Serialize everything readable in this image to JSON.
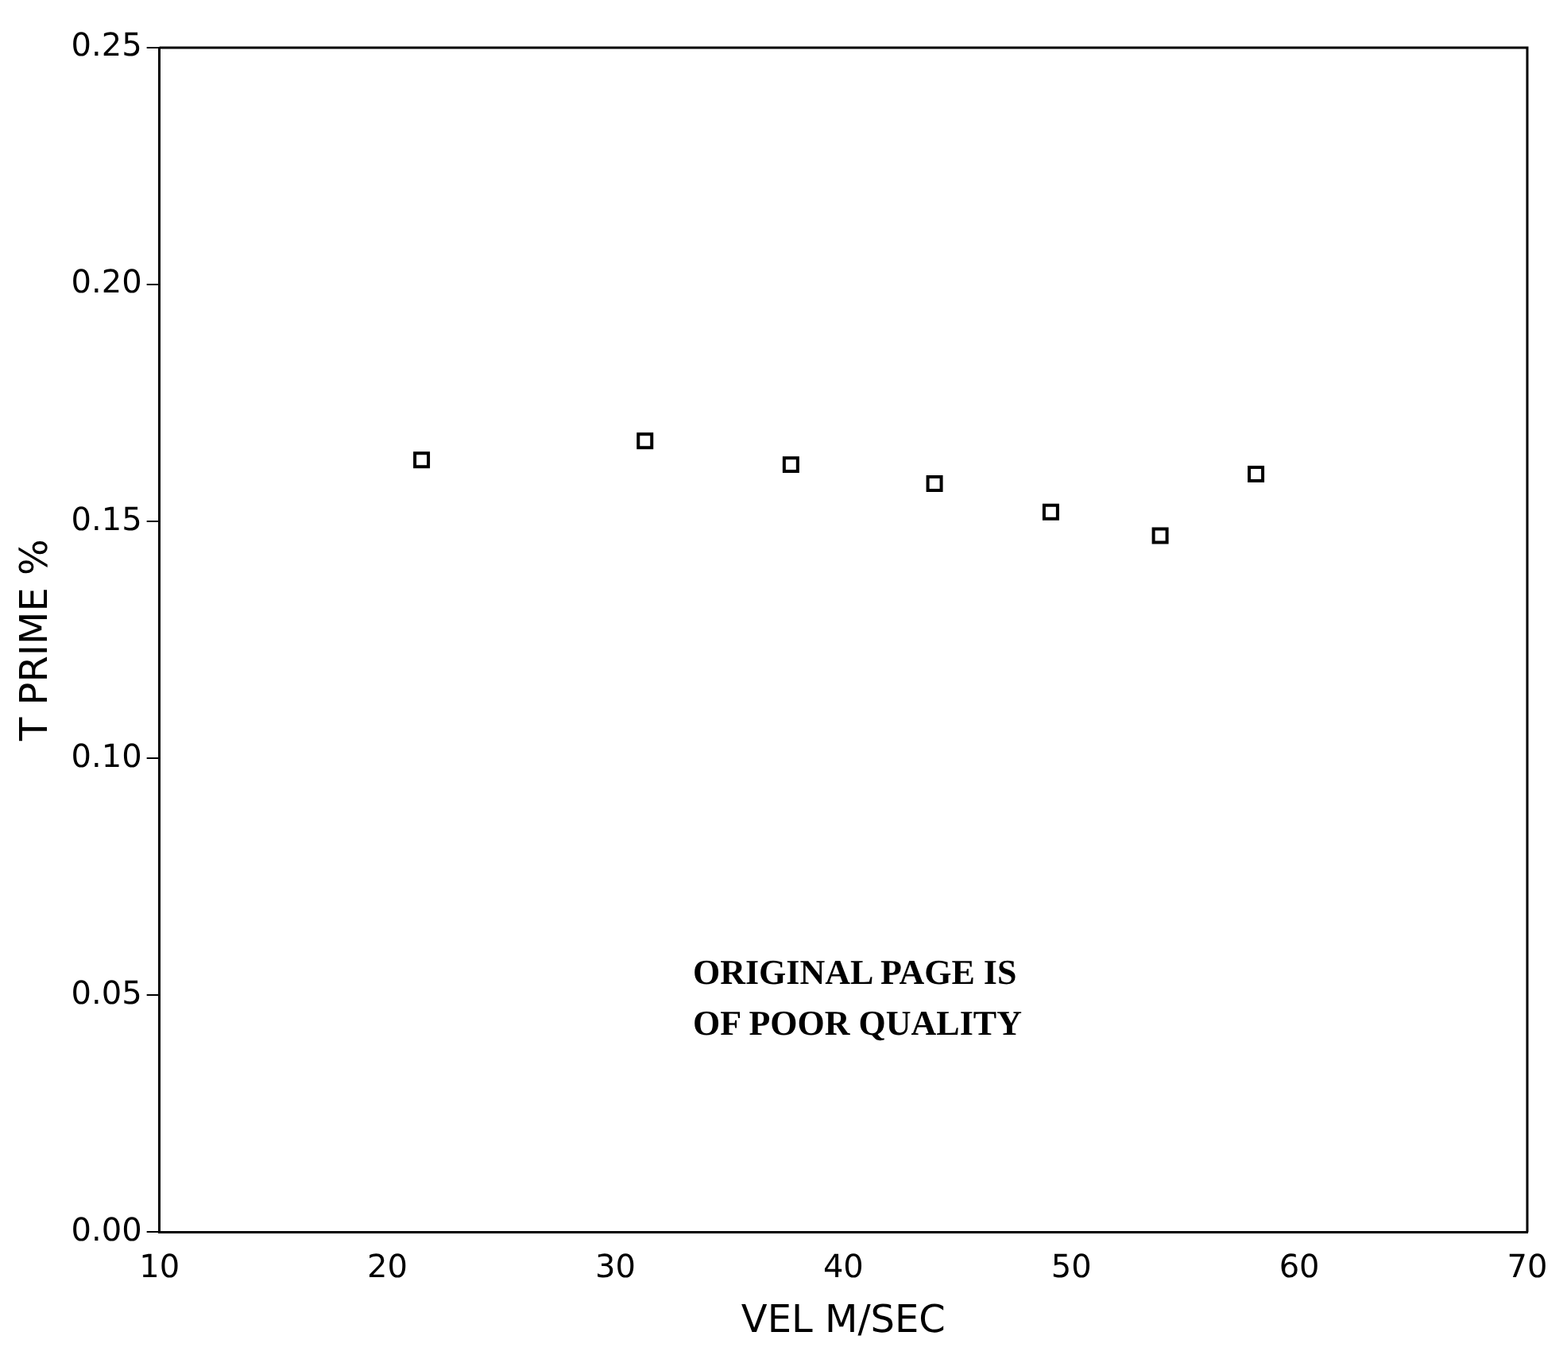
{
  "chart_data": {
    "type": "scatter",
    "xlabel": "VEL M/SEC",
    "ylabel": "T PRIME %",
    "x": [
      21.5,
      31.3,
      37.7,
      44.0,
      49.1,
      53.9,
      58.1
    ],
    "values": [
      0.163,
      0.167,
      0.162,
      0.158,
      0.152,
      0.147,
      0.16
    ],
    "color": "#000000",
    "marker": "square",
    "grid": false,
    "legend": false,
    "xlim": [
      10,
      70
    ],
    "xticks": [
      10,
      20,
      30,
      40,
      50,
      60,
      70
    ],
    "ylim": [
      0,
      0.25
    ],
    "yticks": [
      {
        "value": 0,
        "label": "0.00"
      },
      {
        "value": 0.05,
        "label": "0.05"
      },
      {
        "value": 0.1,
        "label": "0.10"
      },
      {
        "value": 0.15,
        "label": "0.15"
      },
      {
        "value": 0.2,
        "label": "0.20"
      },
      {
        "value": 0.25,
        "label": "0.25"
      }
    ],
    "annotations": [
      "ORIGINAL PAGE IS\nOF POOR QUALITY"
    ]
  }
}
